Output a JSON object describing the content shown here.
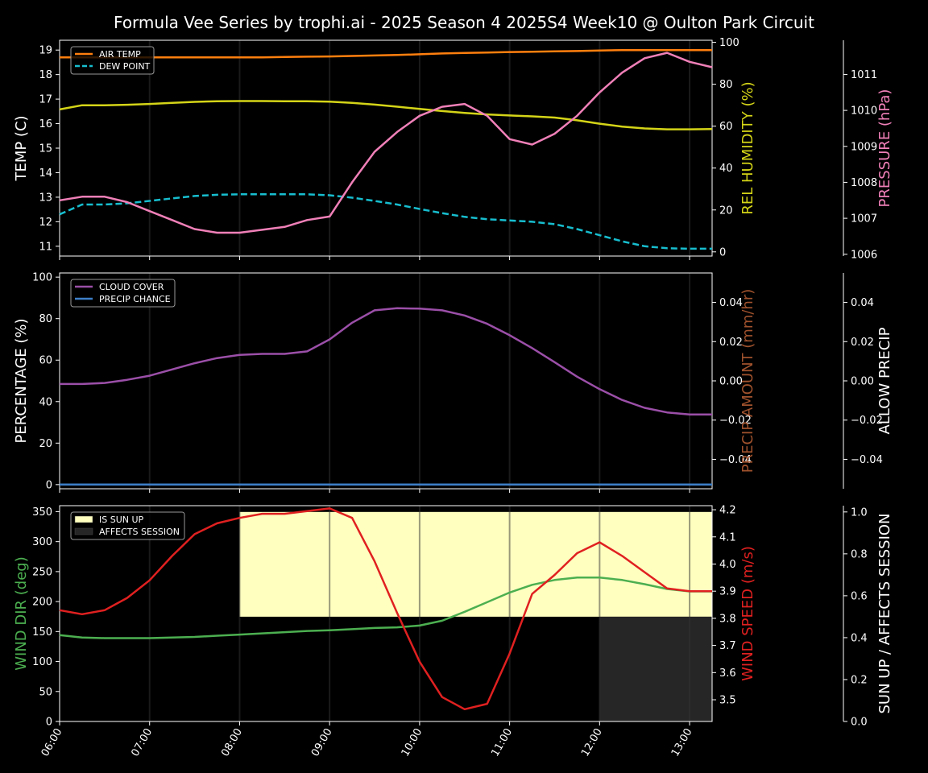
{
  "title": "Formula Vee Series by trophi.ai - 2025 Season 4 2025S4 Week10 @ Oulton Park Circuit",
  "colors": {
    "air_temp": "#ff7f0e",
    "dew_point": "#17becf",
    "humidity": "#d4d418",
    "pressure": "#f080b8",
    "cloud": "#9b4fa8",
    "precip_chance": "#3d7fc8",
    "precip_amount_label": "#a0522d",
    "wind_dir": "#4caf50",
    "wind_speed": "#e02020",
    "sun_up": "#ffffc0",
    "affects_session": "#262626"
  },
  "chart_data": [
    {
      "type": "line",
      "panel": "top",
      "x": [
        "06:00",
        "06:15",
        "06:30",
        "06:45",
        "07:00",
        "07:15",
        "07:30",
        "07:45",
        "08:00",
        "08:15",
        "08:30",
        "08:45",
        "09:00",
        "09:15",
        "09:30",
        "09:45",
        "10:00",
        "10:15",
        "10:30",
        "10:45",
        "11:00",
        "11:15",
        "11:30",
        "11:45",
        "12:00",
        "12:15",
        "12:30",
        "12:45",
        "13:00",
        "13:15"
      ],
      "xlim": [
        "06:00",
        "13:15"
      ],
      "axes": {
        "left": {
          "label": "TEMP (C)",
          "ylim": [
            10.6,
            19.4
          ],
          "ticks": [
            11,
            12,
            13,
            14,
            15,
            16,
            17,
            18,
            19
          ]
        },
        "right": {
          "label": "REL HUMIDITY (%)",
          "ylim": [
            -2,
            101
          ],
          "ticks": [
            0,
            20,
            40,
            60,
            80,
            100
          ]
        },
        "far_right": {
          "label": "PRESSURE (hPa)",
          "ylim": [
            1005.95,
            1011.95
          ],
          "ticks": [
            1006,
            1007,
            1008,
            1009,
            1010,
            1011
          ]
        }
      },
      "legend_placement": "top-left",
      "series": [
        {
          "name": "AIR TEMP",
          "axis": "left",
          "style": "solid",
          "values": [
            18.7,
            18.7,
            18.7,
            18.7,
            18.7,
            18.7,
            18.7,
            18.7,
            18.7,
            18.7,
            18.72,
            18.73,
            18.74,
            18.76,
            18.78,
            18.8,
            18.83,
            18.86,
            18.88,
            18.9,
            18.92,
            18.93,
            18.95,
            18.96,
            18.98,
            19.0,
            19.0,
            19.0,
            19.0,
            19.0
          ]
        },
        {
          "name": "DEW POINT",
          "axis": "left",
          "style": "dashed",
          "values": [
            12.3,
            12.7,
            12.7,
            12.75,
            12.85,
            12.95,
            13.05,
            13.1,
            13.12,
            13.12,
            13.12,
            13.12,
            13.08,
            12.98,
            12.85,
            12.7,
            12.52,
            12.35,
            12.2,
            12.1,
            12.05,
            12.0,
            11.9,
            11.7,
            11.45,
            11.2,
            11.0,
            10.92,
            10.9,
            10.9
          ]
        },
        {
          "name": "REL HUMIDITY",
          "axis": "right",
          "style": "solid",
          "values": [
            68,
            70,
            70,
            70.2,
            70.6,
            71.1,
            71.6,
            71.9,
            72,
            72,
            71.9,
            71.9,
            71.7,
            71.1,
            70.3,
            69.3,
            68.2,
            67.2,
            66.3,
            65.6,
            65.1,
            64.7,
            64.1,
            62.8,
            61.2,
            59.8,
            58.9,
            58.5,
            58.5,
            58.6
          ]
        },
        {
          "name": "PRESSURE",
          "axis": "far_right",
          "values": [
            1007.5,
            1007.6,
            1007.6,
            1007.45,
            1007.2,
            1006.95,
            1006.7,
            1006.6,
            1006.6,
            1006.68,
            1006.76,
            1006.95,
            1007.05,
            1008.0,
            1008.85,
            1009.4,
            1009.85,
            1010.1,
            1010.18,
            1009.85,
            1009.2,
            1009.05,
            1009.35,
            1009.85,
            1010.5,
            1011.05,
            1011.45,
            1011.6,
            1011.35,
            1011.2
          ]
        }
      ]
    },
    {
      "type": "line",
      "panel": "middle",
      "x": [
        "06:00",
        "06:15",
        "06:30",
        "06:45",
        "07:00",
        "07:15",
        "07:30",
        "07:45",
        "08:00",
        "08:15",
        "08:30",
        "08:45",
        "09:00",
        "09:15",
        "09:30",
        "09:45",
        "10:00",
        "10:15",
        "10:30",
        "10:45",
        "11:00",
        "11:15",
        "11:30",
        "11:45",
        "12:00",
        "12:15",
        "12:30",
        "12:45",
        "13:00",
        "13:15"
      ],
      "axes": {
        "left": {
          "label": "PERCENTAGE (%)",
          "ylim": [
            -2,
            102
          ],
          "ticks": [
            0,
            20,
            40,
            60,
            80,
            100
          ]
        },
        "right": {
          "label": "PRECIP AMOUNT (mm/hr)",
          "ylim": [
            -0.055,
            0.055
          ],
          "ticks": [
            -0.04,
            -0.02,
            0.0,
            0.02,
            0.04
          ]
        },
        "far_right": {
          "label": "ALLOW PRECIP",
          "ylim": [
            -0.055,
            0.055
          ],
          "ticks": [
            -0.04,
            -0.02,
            0.0,
            0.02,
            0.04
          ]
        }
      },
      "legend_placement": "top-left",
      "series": [
        {
          "name": "CLOUD COVER",
          "axis": "left",
          "values": [
            48.5,
            48.5,
            49,
            50.5,
            52.5,
            55.5,
            58.5,
            61,
            62.5,
            63,
            63,
            64.2,
            70,
            78,
            84,
            85,
            84.8,
            84,
            81.5,
            77.5,
            72,
            65.8,
            59,
            52,
            46,
            40.8,
            37,
            34.8,
            33.8,
            33.8
          ]
        },
        {
          "name": "PRECIP CHANCE",
          "axis": "left",
          "values": [
            0,
            0,
            0,
            0,
            0,
            0,
            0,
            0,
            0,
            0,
            0,
            0,
            0,
            0,
            0,
            0,
            0,
            0,
            0,
            0,
            0,
            0,
            0,
            0,
            0,
            0,
            0,
            0,
            0,
            0
          ]
        }
      ]
    },
    {
      "type": "line",
      "panel": "bottom",
      "x": [
        "06:00",
        "06:15",
        "06:30",
        "06:45",
        "07:00",
        "07:15",
        "07:30",
        "07:45",
        "08:00",
        "08:15",
        "08:30",
        "08:45",
        "09:00",
        "09:15",
        "09:30",
        "09:45",
        "10:00",
        "10:15",
        "10:30",
        "10:45",
        "11:00",
        "11:15",
        "11:30",
        "11:45",
        "12:00",
        "12:15",
        "12:30",
        "12:45",
        "13:00",
        "13:15"
      ],
      "x_tick_labels": [
        "06:00",
        "07:00",
        "08:00",
        "09:00",
        "10:00",
        "11:00",
        "12:00",
        "13:00"
      ],
      "axes": {
        "left": {
          "label": "WIND DIR (deg)",
          "ylim": [
            0,
            360
          ],
          "ticks": [
            0,
            50,
            100,
            150,
            200,
            250,
            300,
            350
          ]
        },
        "right": {
          "label": "WIND SPEED (m/s)",
          "ylim": [
            3.42,
            4.215
          ],
          "ticks": [
            3.5,
            3.6,
            3.7,
            3.8,
            3.9,
            4.0,
            4.1,
            4.2
          ]
        },
        "far_right": {
          "label": "SUN UP / AFFECTS SESSION",
          "ylim": [
            0,
            1.03
          ],
          "ticks": [
            0.0,
            0.2,
            0.4,
            0.6,
            0.8,
            1.0
          ]
        }
      },
      "legend_placement": "top-left",
      "regions": [
        {
          "name": "IS SUN UP",
          "from": "08:00",
          "to": "13:15",
          "y_from": 0.5,
          "y_to": 1.0
        },
        {
          "name": "AFFECTS SESSION",
          "from": "12:00",
          "to": "13:15",
          "y_from": 0.0,
          "y_to": 0.5
        }
      ],
      "series": [
        {
          "name": "WIND DIR",
          "axis": "left",
          "values": [
            144,
            140,
            139,
            139,
            139,
            140,
            141,
            143,
            145,
            147,
            149,
            151,
            152,
            154,
            156,
            157,
            160,
            168,
            183,
            199,
            215,
            228,
            236,
            240,
            240,
            236,
            229,
            221,
            217,
            217
          ]
        },
        {
          "name": "WIND SPEED",
          "axis": "right",
          "values": [
            3.83,
            3.815,
            3.83,
            3.875,
            3.94,
            4.03,
            4.11,
            4.15,
            4.17,
            4.185,
            4.185,
            4.195,
            4.205,
            4.17,
            4.01,
            3.82,
            3.64,
            3.51,
            3.465,
            3.485,
            3.67,
            3.89,
            3.96,
            4.04,
            4.08,
            4.03,
            3.97,
            3.91,
            3.9,
            3.9
          ]
        }
      ]
    }
  ]
}
